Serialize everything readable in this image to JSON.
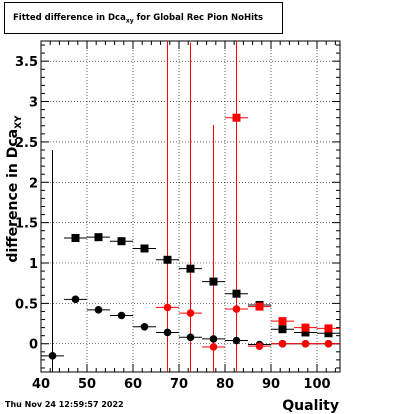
{
  "title": {
    "main": "Fitted difference in Dca",
    "sub": "xy",
    "rest": " for Global Rec Pion NoHits"
  },
  "timestamp": "Thu Nov 24 12:59:57 2022",
  "chart_data": {
    "type": "scatter",
    "title": "Fitted difference in Dca_xy for Global Rec Pion NoHits",
    "xlabel": "Quality",
    "ylabel_main": "difference in Dca",
    "ylabel_sub": "XY",
    "xlim": [
      40,
      105
    ],
    "ylim": [
      -0.35,
      3.75
    ],
    "xticks": [
      40,
      50,
      60,
      70,
      80,
      90,
      100
    ],
    "yticks": [
      0,
      0.5,
      1,
      1.5,
      2,
      2.5,
      3,
      3.5
    ],
    "ytick_labels": [
      "0",
      "0.5",
      "1",
      "1.5",
      "2",
      "2.5",
      "3",
      "3.5"
    ],
    "grid": true,
    "series": [
      {
        "marker": "square",
        "color": "#000000",
        "x": [
          47.5,
          52.5,
          57.5,
          62.5,
          67.5,
          72.5,
          77.5,
          82.5,
          87.5,
          92.5,
          97.5,
          102.5
        ],
        "y": [
          1.31,
          1.32,
          1.27,
          1.18,
          1.04,
          0.93,
          0.77,
          0.62,
          0.48,
          0.18,
          0.14,
          0.13
        ],
        "xerr": 2.5,
        "yerr": [
          0,
          0,
          0,
          0,
          0,
          0,
          0,
          0,
          0,
          0,
          0,
          0
        ]
      },
      {
        "marker": "circle",
        "color": "#000000",
        "x": [
          42.5,
          47.5,
          52.5,
          57.5,
          62.5,
          67.5,
          72.5,
          77.5,
          82.5,
          87.5,
          92.5,
          97.5,
          102.5
        ],
        "y": [
          -0.15,
          0.55,
          0.42,
          0.35,
          0.21,
          0.14,
          0.08,
          0.06,
          0.04,
          -0.01,
          0.0,
          0.0,
          0.0
        ],
        "xerr": 2.5,
        "yerr": [
          2.55,
          0,
          0,
          0,
          0,
          0,
          0,
          0,
          0,
          0,
          0,
          0,
          0
        ]
      },
      {
        "marker": "square",
        "color": "#ff0000",
        "x": [
          82.5,
          87.5,
          92.5,
          97.5,
          102.5
        ],
        "y": [
          2.8,
          0.46,
          0.28,
          0.2,
          0.19
        ],
        "xerr": 2.5,
        "yerr": [
          3.15,
          0,
          0,
          0,
          0
        ]
      },
      {
        "marker": "circle",
        "color": "#ff0000",
        "x": [
          67.5,
          72.5,
          77.5,
          82.5,
          87.5,
          92.5,
          97.5,
          102.5
        ],
        "y": [
          0.45,
          0.38,
          -0.04,
          0.43,
          -0.03,
          0.0,
          0.0,
          0.0
        ],
        "xerr": 2.5,
        "yerr": [
          3.35,
          3.35,
          2.75,
          0,
          0,
          0,
          0,
          0
        ]
      }
    ]
  }
}
